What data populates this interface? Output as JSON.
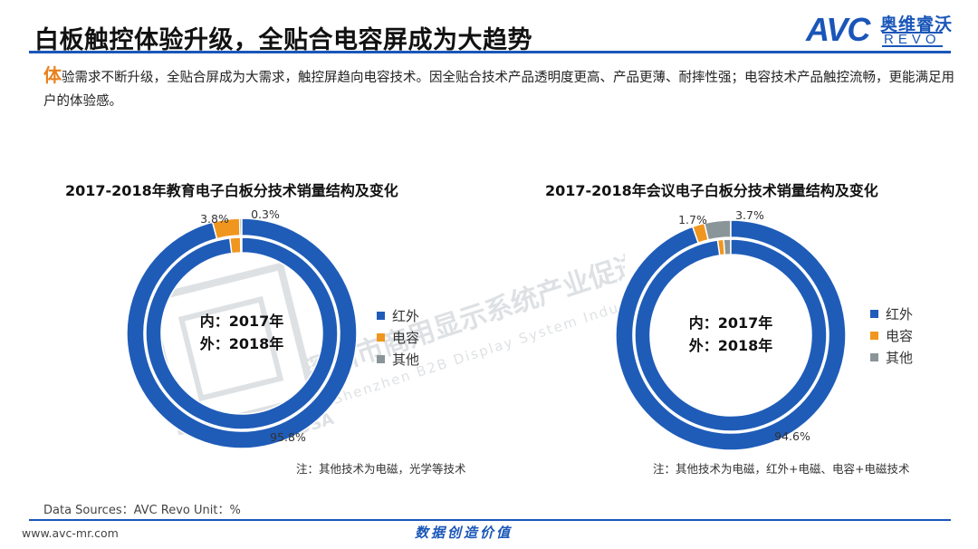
{
  "header": {
    "title": "白板触控体验升级，全贴合电容屏成为大趋势",
    "logo_mark": "AVC",
    "logo_cn": "奥维睿沃",
    "logo_en": "REVO"
  },
  "description": {
    "lead_char": "体",
    "text": "验需求不断升级，全贴合屏成为大需求，触控屏趋向电容技术。因全贴合技术产品透明度更高、产品更薄、耐摔性强；电容技术产品触控流畅，更能满足用户的体验感。"
  },
  "watermark": {
    "cn": "深圳市商用显示系统产业促进会",
    "en": "Shenzhen B2B Display System Industry Association",
    "mark": "DSA"
  },
  "colors": {
    "infrared": "#1f5cb8",
    "capacitive": "#f0961e",
    "other": "#8a9599",
    "accent": "#1a56b8"
  },
  "chart_data": [
    {
      "type": "pie",
      "title": "2017-2018年教育电子白板分技术销量结构及变化",
      "center_text": [
        "内：2017年",
        "外：2018年"
      ],
      "categories": [
        "红外",
        "电容",
        "其他"
      ],
      "series": [
        {
          "name": "2017年",
          "ring": "inner",
          "values": [
            98.0,
            1.8,
            0.2
          ]
        },
        {
          "name": "2018年",
          "ring": "outer",
          "values": [
            95.8,
            3.8,
            0.3
          ]
        }
      ],
      "data_labels": [
        "3.8%",
        "0.3%",
        "95.8%"
      ],
      "legend_position": "right",
      "note": "注：其他技术为电磁，光学等技术"
    },
    {
      "type": "pie",
      "title": "2017-2018年会议电子白板分技术销量结构及变化",
      "center_text": [
        "内：2017年",
        "外：2018年"
      ],
      "categories": [
        "红外",
        "电容",
        "其他"
      ],
      "series": [
        {
          "name": "2017年",
          "ring": "inner",
          "values": [
            97.8,
            1.0,
            1.2
          ]
        },
        {
          "name": "2018年",
          "ring": "outer",
          "values": [
            94.6,
            1.7,
            3.7
          ]
        }
      ],
      "data_labels": [
        "1.7%",
        "3.7%",
        "94.6%"
      ],
      "legend_position": "right",
      "note": "注：其他技术为电磁，红外+电磁、电容+电磁技术"
    }
  ],
  "footer": {
    "sources": "Data Sources：AVC Revo    Unit：%",
    "url": "www.avc-mr.com",
    "slogan": "数据创造价值"
  }
}
